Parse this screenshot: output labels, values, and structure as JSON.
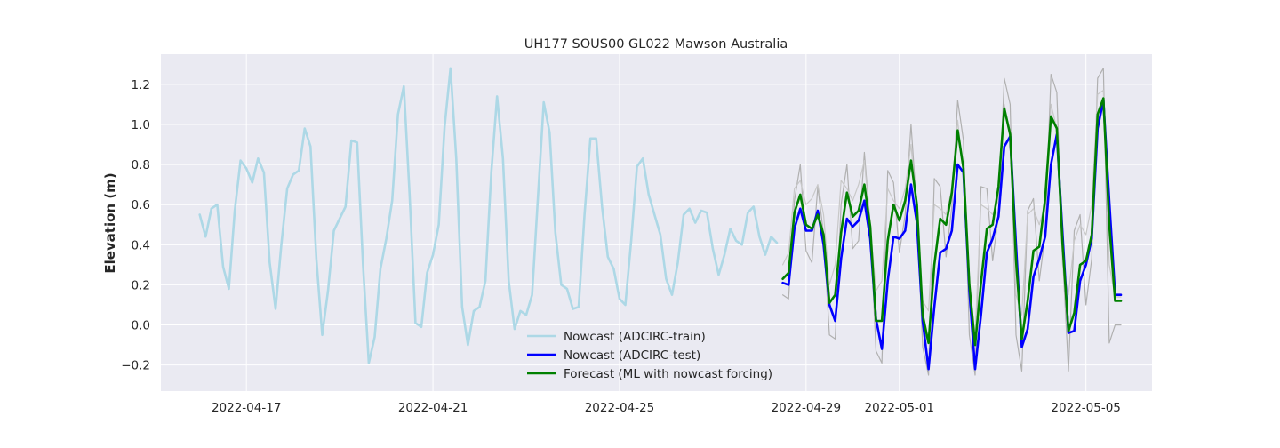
{
  "chart_data": {
    "type": "line",
    "title": "UH177 SOUS00 GL022 Mawson Australia",
    "xlabel": "",
    "ylabel": "Elevation (m)",
    "x_type": "date",
    "xlim": [
      "2022-04-15T04:00",
      "2022-05-06T10:00"
    ],
    "ylim": [
      -0.33,
      1.35
    ],
    "grid": true,
    "legend_position": "lower-center",
    "x_ticks": [
      "2022-04-17",
      "2022-04-21",
      "2022-04-25",
      "2022-04-29",
      "2022-05-01",
      "2022-05-05"
    ],
    "y_ticks": [
      -0.2,
      0.0,
      0.2,
      0.4,
      0.6,
      0.8,
      1.0,
      1.2
    ],
    "background_color": "#eaeaf2",
    "series": [
      {
        "name": "",
        "color": "#b0b0b0",
        "x": [
          "2022-04-28T12:00",
          "2022-04-28T15:00",
          "2022-04-28T18:00",
          "2022-04-28T21:00",
          "2022-04-29T00:00",
          "2022-04-29T03:00",
          "2022-04-29T06:00",
          "2022-04-29T09:00",
          "2022-04-29T12:00",
          "2022-04-29T15:00",
          "2022-04-29T18:00",
          "2022-04-29T21:00",
          "2022-04-30T00:00",
          "2022-04-30T03:00",
          "2022-04-30T06:00",
          "2022-04-30T09:00",
          "2022-04-30T12:00",
          "2022-04-30T15:00",
          "2022-04-30T18:00",
          "2022-04-30T21:00",
          "2022-05-01T00:00",
          "2022-05-01T03:00",
          "2022-05-01T06:00",
          "2022-05-01T09:00",
          "2022-05-01T12:00",
          "2022-05-01T15:00",
          "2022-05-01T18:00",
          "2022-05-01T21:00",
          "2022-05-02T00:00",
          "2022-05-02T03:00",
          "2022-05-02T06:00",
          "2022-05-02T09:00",
          "2022-05-02T12:00",
          "2022-05-02T15:00",
          "2022-05-02T18:00",
          "2022-05-02T21:00",
          "2022-05-03T00:00",
          "2022-05-03T03:00",
          "2022-05-03T06:00",
          "2022-05-03T09:00",
          "2022-05-03T12:00",
          "2022-05-03T15:00",
          "2022-05-03T18:00",
          "2022-05-03T21:00",
          "2022-05-04T00:00",
          "2022-05-04T03:00",
          "2022-05-04T06:00",
          "2022-05-04T09:00",
          "2022-05-04T12:00",
          "2022-05-04T15:00",
          "2022-05-04T18:00",
          "2022-05-04T21:00",
          "2022-05-05T00:00",
          "2022-05-05T03:00",
          "2022-05-05T06:00",
          "2022-05-05T09:00",
          "2022-05-05T12:00",
          "2022-05-05T15:00",
          "2022-05-05T18:00"
        ],
        "y": [
          0.15,
          0.13,
          0.62,
          0.8,
          0.37,
          0.31,
          0.69,
          0.45,
          -0.05,
          -0.07,
          0.6,
          0.8,
          0.38,
          0.42,
          0.86,
          0.5,
          -0.13,
          -0.19,
          0.77,
          0.71,
          0.36,
          0.55,
          1.0,
          0.57,
          -0.11,
          -0.25,
          0.73,
          0.69,
          0.34,
          0.59,
          1.12,
          0.92,
          -0.05,
          -0.25,
          0.69,
          0.68,
          0.32,
          0.55,
          1.23,
          1.1,
          -0.05,
          -0.23,
          0.57,
          0.63,
          0.22,
          0.45,
          1.25,
          1.16,
          0.35,
          -0.23,
          0.47,
          0.55,
          0.1,
          0.33,
          1.23,
          1.28,
          -0.09,
          0.0,
          0.0
        ]
      },
      {
        "name": "",
        "color": "#c8c8c8",
        "x": [
          "2022-04-28T12:00",
          "2022-04-28T15:00",
          "2022-04-28T18:00",
          "2022-04-28T21:00",
          "2022-04-29T00:00",
          "2022-04-29T03:00",
          "2022-04-29T06:00",
          "2022-04-29T09:00",
          "2022-04-29T12:00",
          "2022-04-29T15:00",
          "2022-04-29T18:00",
          "2022-04-29T21:00",
          "2022-04-30T00:00",
          "2022-04-30T03:00",
          "2022-04-30T06:00",
          "2022-04-30T09:00",
          "2022-04-30T12:00",
          "2022-04-30T15:00",
          "2022-04-30T18:00",
          "2022-04-30T21:00",
          "2022-05-01T00:00",
          "2022-05-01T03:00",
          "2022-05-01T06:00",
          "2022-05-01T09:00",
          "2022-05-01T12:00",
          "2022-05-01T15:00",
          "2022-05-01T18:00",
          "2022-05-01T21:00",
          "2022-05-02T00:00",
          "2022-05-02T03:00",
          "2022-05-02T06:00",
          "2022-05-02T09:00",
          "2022-05-02T12:00",
          "2022-05-02T15:00",
          "2022-05-02T18:00",
          "2022-05-02T21:00",
          "2022-05-03T00:00",
          "2022-05-03T03:00",
          "2022-05-03T06:00",
          "2022-05-03T09:00",
          "2022-05-03T12:00",
          "2022-05-03T15:00",
          "2022-05-03T18:00",
          "2022-05-03T21:00",
          "2022-05-04T00:00",
          "2022-05-04T03:00",
          "2022-05-04T06:00",
          "2022-05-04T09:00",
          "2022-05-04T12:00",
          "2022-05-04T15:00",
          "2022-05-04T18:00",
          "2022-05-04T21:00",
          "2022-05-05T00:00",
          "2022-05-05T03:00",
          "2022-05-05T06:00",
          "2022-05-05T09:00",
          "2022-05-05T12:00",
          "2022-05-05T15:00",
          "2022-05-05T18:00"
        ],
        "y": [
          0.3,
          0.36,
          0.68,
          0.72,
          0.6,
          0.63,
          0.7,
          0.55,
          0.2,
          0.3,
          0.72,
          0.68,
          0.62,
          0.7,
          0.82,
          0.5,
          0.17,
          0.22,
          0.68,
          0.62,
          0.58,
          0.68,
          0.9,
          0.55,
          0.12,
          0.07,
          0.6,
          0.58,
          0.55,
          0.68,
          1.02,
          0.75,
          0.1,
          -0.05,
          0.6,
          0.58,
          0.55,
          0.62,
          1.1,
          0.95,
          0.15,
          0.05,
          0.55,
          0.58,
          0.5,
          0.6,
          1.1,
          0.98,
          0.3,
          0.15,
          0.42,
          0.5,
          0.45,
          0.6,
          1.15,
          1.17,
          0.3,
          0.14,
          0.14
        ]
      },
      {
        "name": "Nowcast (ADCIRC-train)",
        "color": "#add8e6",
        "x": [
          "2022-04-16T00:00",
          "2022-04-16T03:00",
          "2022-04-16T06:00",
          "2022-04-16T09:00",
          "2022-04-16T12:00",
          "2022-04-16T15:00",
          "2022-04-16T18:00",
          "2022-04-16T21:00",
          "2022-04-17T00:00",
          "2022-04-17T03:00",
          "2022-04-17T06:00",
          "2022-04-17T09:00",
          "2022-04-17T12:00",
          "2022-04-17T15:00",
          "2022-04-17T18:00",
          "2022-04-17T21:00",
          "2022-04-18T00:00",
          "2022-04-18T03:00",
          "2022-04-18T06:00",
          "2022-04-18T09:00",
          "2022-04-18T12:00",
          "2022-04-18T15:00",
          "2022-04-18T18:00",
          "2022-04-18T21:00",
          "2022-04-19T00:00",
          "2022-04-19T03:00",
          "2022-04-19T06:00",
          "2022-04-19T09:00",
          "2022-04-19T12:00",
          "2022-04-19T15:00",
          "2022-04-19T18:00",
          "2022-04-19T21:00",
          "2022-04-20T00:00",
          "2022-04-20T03:00",
          "2022-04-20T06:00",
          "2022-04-20T09:00",
          "2022-04-20T12:00",
          "2022-04-20T15:00",
          "2022-04-20T18:00",
          "2022-04-20T21:00",
          "2022-04-21T00:00",
          "2022-04-21T03:00",
          "2022-04-21T06:00",
          "2022-04-21T09:00",
          "2022-04-21T12:00",
          "2022-04-21T15:00",
          "2022-04-21T18:00",
          "2022-04-21T21:00",
          "2022-04-22T00:00",
          "2022-04-22T03:00",
          "2022-04-22T06:00",
          "2022-04-22T09:00",
          "2022-04-22T12:00",
          "2022-04-22T15:00",
          "2022-04-22T18:00",
          "2022-04-22T21:00",
          "2022-04-23T00:00",
          "2022-04-23T03:00",
          "2022-04-23T06:00",
          "2022-04-23T09:00",
          "2022-04-23T12:00",
          "2022-04-23T15:00",
          "2022-04-23T18:00",
          "2022-04-23T21:00",
          "2022-04-24T00:00",
          "2022-04-24T03:00",
          "2022-04-24T06:00",
          "2022-04-24T09:00",
          "2022-04-24T12:00",
          "2022-04-24T15:00",
          "2022-04-24T18:00",
          "2022-04-24T21:00",
          "2022-04-25T00:00",
          "2022-04-25T03:00",
          "2022-04-25T06:00",
          "2022-04-25T09:00",
          "2022-04-25T12:00",
          "2022-04-25T15:00",
          "2022-04-25T18:00",
          "2022-04-25T21:00",
          "2022-04-26T00:00",
          "2022-04-26T03:00",
          "2022-04-26T06:00",
          "2022-04-26T09:00",
          "2022-04-26T12:00",
          "2022-04-26T15:00",
          "2022-04-26T18:00",
          "2022-04-26T21:00",
          "2022-04-27T00:00",
          "2022-04-27T03:00",
          "2022-04-27T06:00",
          "2022-04-27T09:00",
          "2022-04-27T12:00",
          "2022-04-27T15:00",
          "2022-04-27T18:00",
          "2022-04-27T21:00",
          "2022-04-28T00:00",
          "2022-04-28T03:00",
          "2022-04-28T06:00",
          "2022-04-28T09:00"
        ],
        "y": [
          0.55,
          0.44,
          0.58,
          0.6,
          0.29,
          0.18,
          0.57,
          0.82,
          0.78,
          0.71,
          0.83,
          0.76,
          0.31,
          0.08,
          0.4,
          0.68,
          0.75,
          0.77,
          0.98,
          0.89,
          0.33,
          -0.05,
          0.17,
          0.47,
          0.53,
          0.59,
          0.92,
          0.91,
          0.3,
          -0.19,
          -0.06,
          0.28,
          0.43,
          0.62,
          1.05,
          1.19,
          0.65,
          0.01,
          -0.01,
          0.26,
          0.35,
          0.5,
          0.99,
          1.28,
          0.83,
          0.09,
          -0.1,
          0.07,
          0.09,
          0.22,
          0.76,
          1.14,
          0.83,
          0.22,
          -0.02,
          0.07,
          0.05,
          0.15,
          0.63,
          1.11,
          0.96,
          0.46,
          0.2,
          0.18,
          0.08,
          0.09,
          0.55,
          0.93,
          0.93,
          0.59,
          0.34,
          0.28,
          0.13,
          0.1,
          0.42,
          0.79,
          0.83,
          0.65,
          0.55,
          0.45,
          0.23,
          0.15,
          0.31,
          0.55,
          0.58,
          0.51,
          0.57,
          0.56,
          0.38,
          0.25,
          0.35,
          0.48,
          0.42,
          0.4,
          0.56,
          0.59,
          0.44,
          0.35,
          0.44,
          0.41
        ]
      },
      {
        "name": "Nowcast (ADCIRC-test)",
        "color": "#0000ff",
        "x": [
          "2022-04-28T12:00",
          "2022-04-28T15:00",
          "2022-04-28T18:00",
          "2022-04-28T21:00",
          "2022-04-29T00:00",
          "2022-04-29T03:00",
          "2022-04-29T06:00",
          "2022-04-29T09:00",
          "2022-04-29T12:00",
          "2022-04-29T15:00",
          "2022-04-29T18:00",
          "2022-04-29T21:00",
          "2022-04-30T00:00",
          "2022-04-30T03:00",
          "2022-04-30T06:00",
          "2022-04-30T09:00",
          "2022-04-30T12:00",
          "2022-04-30T15:00",
          "2022-04-30T18:00",
          "2022-04-30T21:00",
          "2022-05-01T00:00",
          "2022-05-01T03:00",
          "2022-05-01T06:00",
          "2022-05-01T09:00",
          "2022-05-01T12:00",
          "2022-05-01T15:00",
          "2022-05-01T18:00",
          "2022-05-01T21:00",
          "2022-05-02T00:00",
          "2022-05-02T03:00",
          "2022-05-02T06:00",
          "2022-05-02T09:00",
          "2022-05-02T12:00",
          "2022-05-02T15:00",
          "2022-05-02T18:00",
          "2022-05-02T21:00",
          "2022-05-03T00:00",
          "2022-05-03T03:00",
          "2022-05-03T06:00",
          "2022-05-03T09:00",
          "2022-05-03T12:00",
          "2022-05-03T15:00",
          "2022-05-03T18:00",
          "2022-05-03T21:00",
          "2022-05-04T00:00",
          "2022-05-04T03:00",
          "2022-05-04T06:00",
          "2022-05-04T09:00",
          "2022-05-04T12:00",
          "2022-05-04T15:00",
          "2022-05-04T18:00",
          "2022-05-04T21:00",
          "2022-05-05T00:00",
          "2022-05-05T03:00",
          "2022-05-05T06:00",
          "2022-05-05T09:00",
          "2022-05-05T12:00",
          "2022-05-05T15:00",
          "2022-05-05T18:00"
        ],
        "y": [
          0.21,
          0.2,
          0.48,
          0.58,
          0.47,
          0.47,
          0.57,
          0.4,
          0.1,
          0.02,
          0.33,
          0.53,
          0.49,
          0.52,
          0.62,
          0.43,
          0.03,
          -0.12,
          0.22,
          0.44,
          0.43,
          0.47,
          0.7,
          0.51,
          0.02,
          -0.22,
          0.09,
          0.36,
          0.38,
          0.47,
          0.8,
          0.76,
          0.17,
          -0.22,
          0.05,
          0.36,
          0.43,
          0.54,
          0.89,
          0.94,
          0.4,
          -0.11,
          -0.02,
          0.24,
          0.33,
          0.44,
          0.8,
          0.95,
          0.45,
          -0.04,
          -0.03,
          0.22,
          0.3,
          0.43,
          0.98,
          1.12,
          0.62,
          0.15,
          0.15
        ]
      },
      {
        "name": "Forecast (ML with nowcast forcing)",
        "color": "#008000",
        "x": [
          "2022-04-28T12:00",
          "2022-04-28T15:00",
          "2022-04-28T18:00",
          "2022-04-28T21:00",
          "2022-04-29T00:00",
          "2022-04-29T03:00",
          "2022-04-29T06:00",
          "2022-04-29T09:00",
          "2022-04-29T12:00",
          "2022-04-29T15:00",
          "2022-04-29T18:00",
          "2022-04-29T21:00",
          "2022-04-30T00:00",
          "2022-04-30T03:00",
          "2022-04-30T06:00",
          "2022-04-30T09:00",
          "2022-04-30T12:00",
          "2022-04-30T15:00",
          "2022-04-30T18:00",
          "2022-04-30T21:00",
          "2022-05-01T00:00",
          "2022-05-01T03:00",
          "2022-05-01T06:00",
          "2022-05-01T09:00",
          "2022-05-01T12:00",
          "2022-05-01T15:00",
          "2022-05-01T18:00",
          "2022-05-01T21:00",
          "2022-05-02T00:00",
          "2022-05-02T03:00",
          "2022-05-02T06:00",
          "2022-05-02T09:00",
          "2022-05-02T12:00",
          "2022-05-02T15:00",
          "2022-05-02T18:00",
          "2022-05-02T21:00",
          "2022-05-03T00:00",
          "2022-05-03T03:00",
          "2022-05-03T06:00",
          "2022-05-03T09:00",
          "2022-05-03T12:00",
          "2022-05-03T15:00",
          "2022-05-03T18:00",
          "2022-05-03T21:00",
          "2022-05-04T00:00",
          "2022-05-04T03:00",
          "2022-05-04T06:00",
          "2022-05-04T09:00",
          "2022-05-04T12:00",
          "2022-05-04T15:00",
          "2022-05-04T18:00",
          "2022-05-04T21:00",
          "2022-05-05T00:00",
          "2022-05-05T03:00",
          "2022-05-05T06:00",
          "2022-05-05T09:00",
          "2022-05-05T12:00",
          "2022-05-05T15:00",
          "2022-05-05T18:00"
        ],
        "y": [
          0.23,
          0.26,
          0.56,
          0.65,
          0.5,
          0.48,
          0.55,
          0.45,
          0.11,
          0.15,
          0.46,
          0.66,
          0.54,
          0.57,
          0.7,
          0.49,
          0.02,
          0.02,
          0.42,
          0.6,
          0.52,
          0.62,
          0.82,
          0.6,
          0.05,
          -0.09,
          0.3,
          0.53,
          0.5,
          0.66,
          0.97,
          0.78,
          0.2,
          -0.1,
          0.21,
          0.48,
          0.5,
          0.69,
          1.08,
          0.95,
          0.32,
          -0.07,
          0.12,
          0.37,
          0.39,
          0.63,
          1.04,
          0.98,
          0.4,
          -0.03,
          0.06,
          0.3,
          0.32,
          0.45,
          1.05,
          1.13,
          0.5,
          0.12,
          0.12
        ]
      }
    ]
  }
}
